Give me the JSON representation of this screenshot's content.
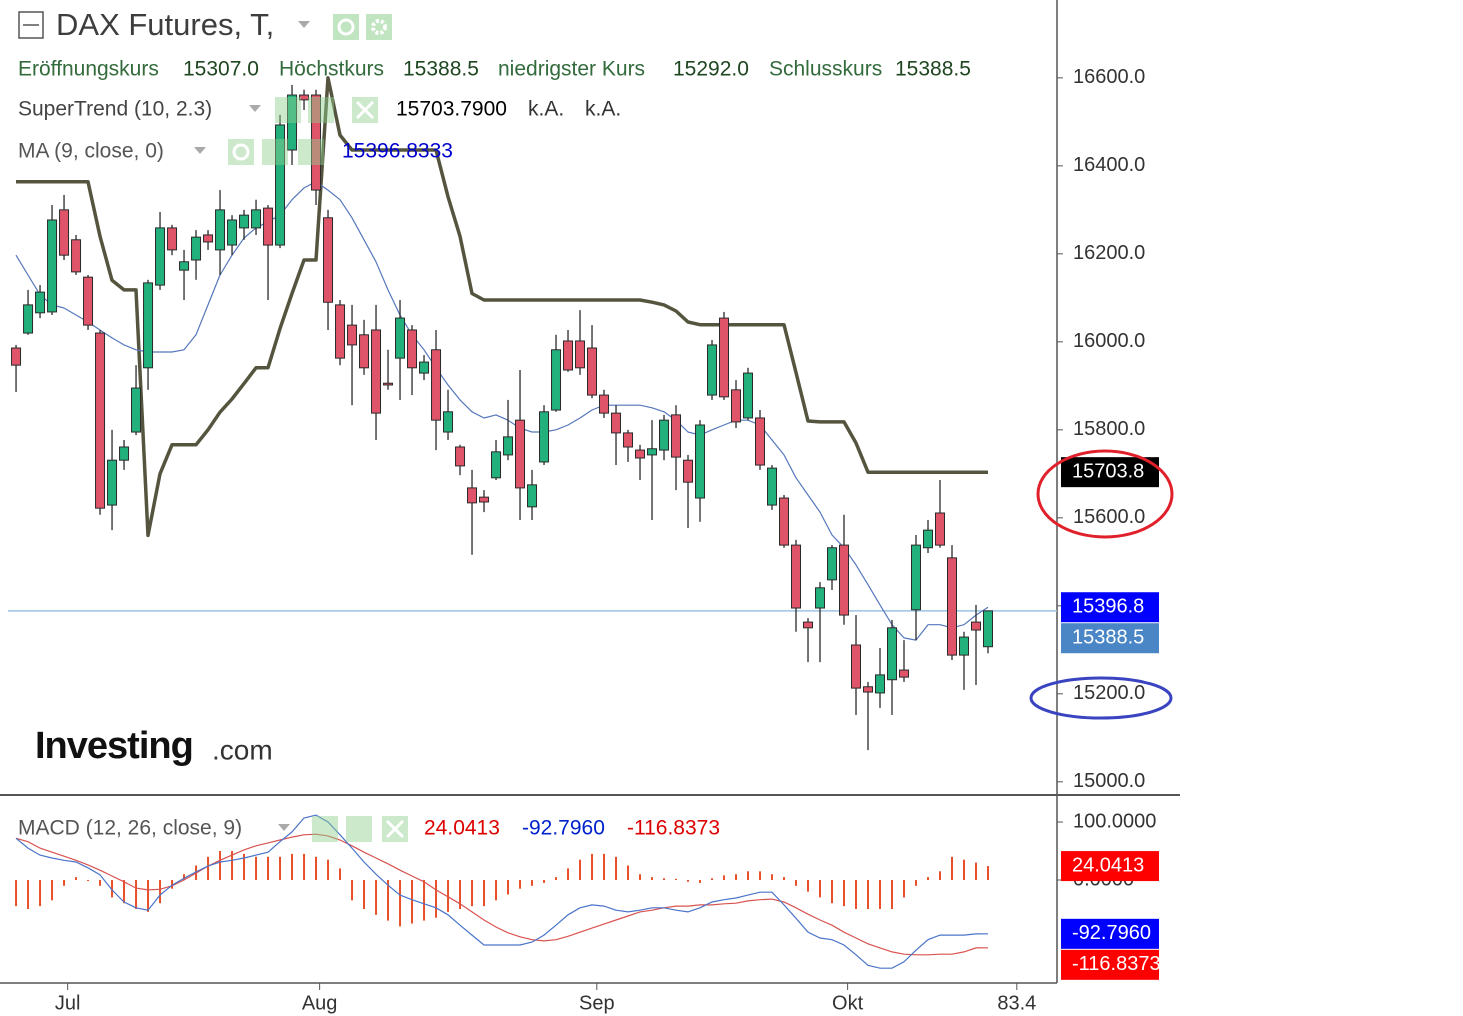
{
  "header": {
    "title": "DAX Futures, T,",
    "ohlc": [
      {
        "label": "Eröffnungskurs",
        "value": "15307.0"
      },
      {
        "label": "Höchstkurs",
        "value": "15388.5"
      },
      {
        "label": "niedrigster Kurs",
        "value": "15292.0"
      },
      {
        "label": "Schlusskurs",
        "value": "15388.5"
      }
    ]
  },
  "logo": [
    "Investing",
    ".com"
  ],
  "chart_data": [
    {
      "type": "candlestick",
      "up_color": "#22b07d",
      "down_color": "#e0546a",
      "outline_color": "#2a2a2a",
      "open": [
        15986,
        16020,
        16066,
        16068,
        16300,
        16232,
        16147,
        16020,
        15629,
        15731,
        15795,
        15941,
        16129,
        16259,
        16163,
        16186,
        16243,
        16209,
        16220,
        16259,
        16259,
        16304,
        16220,
        16436,
        16561,
        16561,
        16282,
        16084,
        16038,
        16016,
        16027,
        15906,
        15963,
        16027,
        15929,
        15982,
        15795,
        15761,
        15668,
        15647,
        15691,
        15743,
        15822,
        15625,
        15727,
        15845,
        16002,
        16002,
        15986,
        15879,
        15838,
        15793,
        15754,
        15743,
        15754,
        15834,
        15731,
        15645,
        15879,
        16054,
        15891,
        15827,
        15827,
        15629,
        15645,
        15538,
        15363,
        15395,
        15459,
        15538,
        15311,
        15216,
        15202,
        15232,
        15254,
        15391,
        15532,
        15611,
        15509,
        15288,
        15363,
        15307
      ],
      "high": [
        15993,
        16118,
        16129,
        16311,
        16334,
        16243,
        16152,
        16027,
        15800,
        15777,
        15947,
        16141,
        16295,
        16266,
        16209,
        16254,
        16254,
        16345,
        16288,
        16300,
        16323,
        16311,
        16516,
        16584,
        16573,
        16573,
        16300,
        16095,
        16084,
        16050,
        16084,
        15982,
        16095,
        16038,
        15970,
        16027,
        15891,
        15766,
        15709,
        15663,
        15777,
        15868,
        15936,
        15709,
        15856,
        16016,
        16027,
        16072,
        16038,
        15891,
        15856,
        15800,
        15766,
        15822,
        15834,
        15856,
        15743,
        15822,
        16004,
        16068,
        15913,
        15941,
        15845,
        15720,
        15652,
        15550,
        15372,
        15454,
        15538,
        15607,
        15379,
        15227,
        15304,
        15368,
        15322,
        15561,
        15595,
        15686,
        15538,
        15341,
        15402,
        15388.5
      ],
      "low": [
        15886,
        16016,
        16054,
        16061,
        16186,
        16152,
        16027,
        15607,
        15572,
        15709,
        15788,
        15891,
        16118,
        16197,
        16095,
        16141,
        16209,
        16152,
        16197,
        16232,
        16243,
        16095,
        16213,
        16402,
        16527,
        16311,
        16027,
        15947,
        15856,
        15925,
        15777,
        15891,
        15868,
        15879,
        15913,
        15754,
        15777,
        15697,
        15516,
        15613,
        15686,
        15731,
        15595,
        15595,
        15720,
        15841,
        15932,
        15925,
        15872,
        15827,
        15720,
        15727,
        15686,
        15595,
        15731,
        15663,
        15577,
        15591,
        15868,
        15868,
        15804,
        15822,
        15709,
        15618,
        15532,
        15341,
        15272,
        15272,
        15436,
        15357,
        15152,
        15072,
        15168,
        15152,
        15227,
        15322,
        15520,
        15532,
        15277,
        15209,
        15220,
        15292
      ],
      "close": [
        15947,
        16084,
        16113,
        16277,
        16197,
        16159,
        16038,
        15622,
        15731,
        15761,
        15895,
        16134,
        16259,
        16209,
        16182,
        16238,
        16227,
        16300,
        16277,
        16288,
        16300,
        16220,
        16493,
        16561,
        16550,
        16345,
        16090,
        15963,
        15993,
        15941,
        15838,
        15902,
        16054,
        15941,
        15954,
        15822,
        15841,
        15718,
        15634,
        15636,
        15750,
        15784,
        15668,
        15675,
        15841,
        15982,
        15936,
        15941,
        15879,
        15838,
        15793,
        15761,
        15736,
        15757,
        15822,
        15738,
        15681,
        15811,
        15993,
        15875,
        15818,
        15929,
        15720,
        15713,
        15538,
        15395,
        15350,
        15441,
        15532,
        15379,
        15213,
        15204,
        15243,
        15350,
        15238,
        15538,
        15572,
        15538,
        15288,
        15329,
        15345,
        15388.5
      ],
      "series": [
        {
          "name": "SuperTrend (10, 2.3)",
          "color": "#55553f",
          "width": 3.5,
          "legend_values": [
            "15703.7900",
            "k.A.",
            "k.A."
          ],
          "values": [
            16364,
            16364,
            16364,
            16364,
            16364,
            16364,
            16364,
            16240,
            16140,
            16118,
            16118,
            15560,
            15700,
            15766,
            15766,
            15766,
            15800,
            15840,
            15870,
            15905,
            15941,
            15941,
            16030,
            16110,
            16186,
            16186,
            16600,
            16470,
            16436,
            16436,
            16436,
            16436,
            16436,
            16436,
            16436,
            16436,
            16330,
            16240,
            16110,
            16095,
            16095,
            16095,
            16095,
            16095,
            16095,
            16095,
            16095,
            16095,
            16095,
            16095,
            16095,
            16095,
            16095,
            16090,
            16084,
            16070,
            16045,
            16039,
            16039,
            16039,
            16039,
            16039,
            16039,
            16039,
            16039,
            15930,
            15820,
            15818,
            15818,
            15818,
            15770,
            15703.79,
            15703.79,
            15703.79,
            15703.79,
            15703.79,
            15703.79,
            15703.79,
            15703.79,
            15703.79,
            15703.79,
            15703.79
          ]
        },
        {
          "name": "MA (9, close, 0)",
          "color": "#5577bb",
          "width": 1.2,
          "legend_values": [
            "15396.8333"
          ],
          "values": [
            16197,
            16152,
            16107,
            16084,
            16077,
            16061,
            16045,
            16027,
            16009,
            15993,
            15982,
            15977,
            15977,
            15977,
            15982,
            16016,
            16084,
            16152,
            16197,
            16236,
            16259,
            16273,
            16288,
            16323,
            16350,
            16364,
            16345,
            16323,
            16282,
            16232,
            16182,
            16118,
            16061,
            16016,
            15982,
            15941,
            15902,
            15868,
            15841,
            15827,
            15834,
            15822,
            15804,
            15795,
            15795,
            15800,
            15811,
            15827,
            15845,
            15856,
            15856,
            15856,
            15856,
            15850,
            15841,
            15822,
            15795,
            15788,
            15800,
            15811,
            15822,
            15822,
            15811,
            15777,
            15743,
            15691,
            15652,
            15613,
            15561,
            15532,
            15493,
            15448,
            15402,
            15357,
            15327,
            15322,
            15357,
            15357,
            15350,
            15357,
            15379,
            15396.8333
          ]
        }
      ],
      "last_line_color": "#9cc3e6",
      "xlim": [
        -0.67,
        86.75
      ],
      "ylim": [
        14970,
        16777
      ],
      "yticks": [
        {
          "value": 15000,
          "label": "15000.0"
        },
        {
          "value": 15200,
          "label": "15200.0"
        },
        {
          "value": 15400,
          "label": "15400.0"
        },
        {
          "value": 15600,
          "label": "15600.0"
        },
        {
          "value": 15800,
          "label": "15800.0"
        },
        {
          "value": 16000,
          "label": "16000.0"
        },
        {
          "value": 16200,
          "label": "16200.0"
        },
        {
          "value": 16400,
          "label": "16400.0"
        },
        {
          "value": 16600,
          "label": "16600.0"
        }
      ],
      "badges": [
        {
          "value": 15703.8,
          "label": "15703.8",
          "color": "#000000"
        },
        {
          "value": 15396.8,
          "label": "15396.8",
          "color": "#0000ff"
        },
        {
          "value": 15388.5,
          "label": "15388.5",
          "color": "#4a86c5"
        }
      ]
    },
    {
      "type": "macd",
      "title": "MACD (12, 26, close, 9)",
      "histogram": {
        "color": "#e8502a",
        "values": [
          -45,
          -50,
          -45,
          -35,
          -10,
          5,
          0,
          -10,
          -30,
          -40,
          -50,
          -55,
          -40,
          -15,
          10,
          25,
          40,
          50,
          50,
          45,
          40,
          40,
          40,
          45,
          45,
          40,
          35,
          20,
          -35,
          -50,
          -60,
          -70,
          -80,
          -75,
          -70,
          -65,
          -55,
          -50,
          -45,
          -45,
          -35,
          -25,
          -15,
          -10,
          -5,
          5,
          20,
          35,
          45,
          45,
          40,
          25,
          10,
          5,
          3,
          2,
          -3,
          -5,
          3,
          8,
          10,
          15,
          15,
          10,
          5,
          -10,
          -20,
          -30,
          -40,
          -45,
          -50,
          -50,
          -50,
          -50,
          -30,
          -10,
          5,
          15,
          40,
          35,
          30,
          24.0413
        ]
      },
      "macd": {
        "color": "#4a74c9",
        "values": [
          72,
          55,
          43,
          38,
          34,
          31,
          21,
          9,
          -17,
          -38,
          -48,
          -52,
          -26,
          -9,
          3,
          14,
          24,
          31,
          34,
          38,
          43,
          48,
          66,
          83,
          107,
          112,
          100,
          78,
          55,
          31,
          10,
          -9,
          -26,
          -34,
          -41,
          -48,
          -60,
          -78,
          -95,
          -112,
          -112,
          -112,
          -112,
          -107,
          -95,
          -78,
          -60,
          -48,
          -43,
          -45,
          -52,
          -55,
          -52,
          -48,
          -48,
          -52,
          -55,
          -48,
          -38,
          -34,
          -31,
          -26,
          -21,
          -21,
          -43,
          -66,
          -90,
          -100,
          -103,
          -112,
          -129,
          -147,
          -152,
          -152,
          -141,
          -121,
          -103,
          -95,
          -95,
          -95,
          -93,
          -92.796
        ]
      },
      "signal": {
        "color": "#d9534f",
        "values": [
          72,
          66,
          55,
          48,
          41,
          34,
          26,
          17,
          7,
          -3,
          -14,
          -17,
          -16,
          -10,
          0,
          12,
          24,
          34,
          43,
          52,
          59,
          64,
          69,
          74,
          78,
          79,
          76,
          69,
          59,
          48,
          38,
          28,
          17,
          7,
          -3,
          -17,
          -29,
          -41,
          -55,
          -69,
          -81,
          -91,
          -98,
          -103,
          -105,
          -103,
          -97,
          -90,
          -83,
          -76,
          -69,
          -62,
          -55,
          -52,
          -48,
          -45,
          -45,
          -43,
          -43,
          -41,
          -40,
          -36,
          -34,
          -33,
          -38,
          -48,
          -59,
          -69,
          -78,
          -90,
          -100,
          -110,
          -117,
          -124,
          -128,
          -129,
          -129,
          -128,
          -128,
          -124,
          -117,
          -116.8373
        ]
      },
      "xlim": [
        -0.67,
        86.75
      ],
      "xticks": [
        {
          "value": 4.3,
          "label": "Jul"
        },
        {
          "value": 25.3,
          "label": "Aug"
        },
        {
          "value": 48.4,
          "label": "Sep"
        },
        {
          "value": 69.3,
          "label": "Okt"
        },
        83.4
      ],
      "ylim": [
        -177.6,
        146.6
      ],
      "yticks": [
        {
          "value": 0,
          "label": "0.0000"
        },
        {
          "value": 100,
          "label": "100.0000"
        }
      ],
      "badges": [
        {
          "value": 24.0413,
          "label": "24.0413",
          "color": "#ff0000"
        },
        {
          "value": -92.796,
          "label": "-92.7960",
          "color": "#0000ff"
        },
        {
          "value": -116.8373,
          "label": "-116.8373",
          "color": "#ff0000"
        }
      ]
    }
  ]
}
